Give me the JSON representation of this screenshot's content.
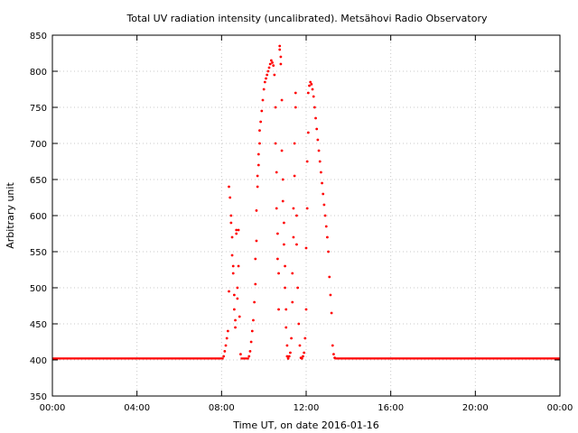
{
  "chart_data": {
    "type": "scatter",
    "title": "Total UV radiation intensity (uncalibrated). Metsähovi Radio Observatory",
    "xlabel": "Time UT, on date 2016-01-16",
    "ylabel": "Arbitrary unit",
    "xlim": [
      0,
      24
    ],
    "ylim": [
      350,
      850
    ],
    "x_ticks": [
      {
        "value": 0,
        "label": "00:00"
      },
      {
        "value": 4,
        "label": "04:00"
      },
      {
        "value": 8,
        "label": "08:00"
      },
      {
        "value": 12,
        "label": "12:00"
      },
      {
        "value": 16,
        "label": "16:00"
      },
      {
        "value": 20,
        "label": "20:00"
      },
      {
        "value": 24,
        "label": "00:00"
      }
    ],
    "y_ticks": [
      {
        "value": 350,
        "label": "350"
      },
      {
        "value": 400,
        "label": "400"
      },
      {
        "value": 450,
        "label": "450"
      },
      {
        "value": 500,
        "label": "500"
      },
      {
        "value": 550,
        "label": "550"
      },
      {
        "value": 600,
        "label": "600"
      },
      {
        "value": 650,
        "label": "650"
      },
      {
        "value": 700,
        "label": "700"
      },
      {
        "value": 750,
        "label": "750"
      },
      {
        "value": 800,
        "label": "800"
      },
      {
        "value": 850,
        "label": "850"
      }
    ],
    "grid": true,
    "marker_color": "#ff0000",
    "series": [
      {
        "baseline": 402,
        "points": [
          [
            8.1,
            405
          ],
          [
            8.15,
            412
          ],
          [
            8.2,
            420
          ],
          [
            8.25,
            430
          ],
          [
            8.3,
            440
          ],
          [
            8.35,
            495
          ],
          [
            8.35,
            640
          ],
          [
            8.4,
            625
          ],
          [
            8.45,
            600
          ],
          [
            8.45,
            590
          ],
          [
            8.5,
            570
          ],
          [
            8.5,
            545
          ],
          [
            8.55,
            530
          ],
          [
            8.55,
            520
          ],
          [
            8.6,
            490
          ],
          [
            8.6,
            470
          ],
          [
            8.65,
            455
          ],
          [
            8.65,
            445
          ],
          [
            8.7,
            580
          ],
          [
            8.7,
            575
          ],
          [
            8.75,
            500
          ],
          [
            8.75,
            485
          ],
          [
            8.8,
            530
          ],
          [
            8.8,
            580
          ],
          [
            8.85,
            460
          ],
          [
            8.9,
            408
          ],
          [
            9.3,
            405
          ],
          [
            9.35,
            412
          ],
          [
            9.4,
            425
          ],
          [
            9.45,
            440
          ],
          [
            9.5,
            455
          ],
          [
            9.55,
            480
          ],
          [
            9.6,
            505
          ],
          [
            9.6,
            540
          ],
          [
            9.65,
            565
          ],
          [
            9.65,
            607
          ],
          [
            9.7,
            640
          ],
          [
            9.7,
            655
          ],
          [
            9.75,
            670
          ],
          [
            9.75,
            685
          ],
          [
            9.8,
            700
          ],
          [
            9.8,
            718
          ],
          [
            9.85,
            730
          ],
          [
            9.9,
            745
          ],
          [
            9.95,
            760
          ],
          [
            10.0,
            775
          ],
          [
            10.05,
            785
          ],
          [
            10.1,
            790
          ],
          [
            10.15,
            795
          ],
          [
            10.2,
            800
          ],
          [
            10.25,
            805
          ],
          [
            10.3,
            810
          ],
          [
            10.35,
            815
          ],
          [
            10.4,
            812
          ],
          [
            10.45,
            808
          ],
          [
            10.5,
            795
          ],
          [
            10.55,
            750
          ],
          [
            10.55,
            700
          ],
          [
            10.6,
            660
          ],
          [
            10.6,
            610
          ],
          [
            10.65,
            575
          ],
          [
            10.65,
            540
          ],
          [
            10.7,
            520
          ],
          [
            10.7,
            470
          ],
          [
            10.75,
            835
          ],
          [
            10.75,
            830
          ],
          [
            10.8,
            820
          ],
          [
            10.8,
            810
          ],
          [
            10.85,
            760
          ],
          [
            10.85,
            690
          ],
          [
            10.9,
            650
          ],
          [
            10.9,
            620
          ],
          [
            10.95,
            590
          ],
          [
            10.95,
            560
          ],
          [
            11.0,
            530
          ],
          [
            11.0,
            500
          ],
          [
            11.05,
            470
          ],
          [
            11.05,
            445
          ],
          [
            11.1,
            420
          ],
          [
            11.1,
            405
          ],
          [
            11.15,
            402
          ],
          [
            11.2,
            405
          ],
          [
            11.25,
            410
          ],
          [
            11.3,
            430
          ],
          [
            11.35,
            480
          ],
          [
            11.35,
            520
          ],
          [
            11.4,
            570
          ],
          [
            11.4,
            610
          ],
          [
            11.45,
            655
          ],
          [
            11.45,
            700
          ],
          [
            11.5,
            750
          ],
          [
            11.5,
            770
          ],
          [
            11.55,
            600
          ],
          [
            11.55,
            560
          ],
          [
            11.6,
            500
          ],
          [
            11.65,
            450
          ],
          [
            11.7,
            420
          ],
          [
            11.75,
            403
          ],
          [
            11.8,
            402
          ],
          [
            11.85,
            405
          ],
          [
            11.9,
            410
          ],
          [
            11.95,
            430
          ],
          [
            12.0,
            470
          ],
          [
            12.0,
            555
          ],
          [
            12.05,
            610
          ],
          [
            12.05,
            675
          ],
          [
            12.1,
            715
          ],
          [
            12.1,
            770
          ],
          [
            12.15,
            780
          ],
          [
            12.2,
            785
          ],
          [
            12.25,
            782
          ],
          [
            12.3,
            775
          ],
          [
            12.35,
            765
          ],
          [
            12.4,
            750
          ],
          [
            12.45,
            735
          ],
          [
            12.5,
            720
          ],
          [
            12.55,
            705
          ],
          [
            12.6,
            690
          ],
          [
            12.65,
            675
          ],
          [
            12.7,
            660
          ],
          [
            12.75,
            645
          ],
          [
            12.8,
            630
          ],
          [
            12.85,
            615
          ],
          [
            12.9,
            600
          ],
          [
            12.95,
            585
          ],
          [
            13.0,
            570
          ],
          [
            13.05,
            550
          ],
          [
            13.1,
            515
          ],
          [
            13.15,
            490
          ],
          [
            13.2,
            465
          ],
          [
            13.25,
            420
          ],
          [
            13.3,
            408
          ],
          [
            13.35,
            403
          ]
        ]
      }
    ]
  }
}
